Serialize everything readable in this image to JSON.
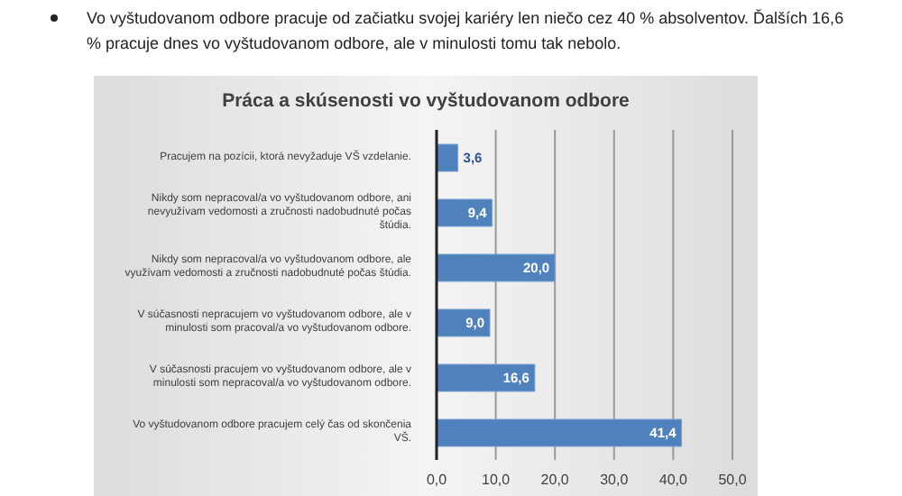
{
  "chart_data": {
    "type": "bar",
    "orientation": "horizontal",
    "title": "Práca a skúsenosti vo vyštudovanom odbore",
    "annotations": [
      "Vo vyštudovanom odbore pracuje od začiatku svojej kariéry len niečo cez 40 % absolventov. Ďalších 16,6 % pracuje dnes vo vyštudovanom odbore, ale v minulosti tomu tak nebolo."
    ],
    "categories": [
      "Pracujem na pozícii, ktorá nevyžaduje VŠ vzdelanie.",
      "Nikdy som nepracoval/a vo vyštudovanom  odbore, ani nevyužívam vedomosti a zručnosti nadobudnuté počas štúdia.",
      "Nikdy som nepracoval/a vo vyštudovanom odbore, ale využívam vedomosti a zručnosti nadobudnuté počas štúdia.",
      "V súčasnosti nepracujem vo vyštudovanom odbore, ale v minulosti som pracoval/a vo vyštudovanom  odbore.",
      "V súčasnosti pracujem vo vyštudovanom odbore, ale v minulosti som nepracoval/a vo vyštudovanom  odbore.",
      "Vo vyštudovanom  odbore pracujem celý čas od skončenia VŠ."
    ],
    "values": [
      3.6,
      9.4,
      20.0,
      9.0,
      16.6,
      41.4
    ],
    "value_labels": [
      "3,6",
      "9,4",
      "20,0",
      "9,0",
      "16,6",
      "41,4"
    ],
    "color": "#4f81bd",
    "xlim": [
      0,
      50
    ],
    "xticks": [
      {
        "value": 0,
        "label": "0,0"
      },
      {
        "value": 10,
        "label": "10,0"
      },
      {
        "value": 20,
        "label": "20,0"
      },
      {
        "value": 30,
        "label": "30,0"
      },
      {
        "value": 40,
        "label": "40,0"
      },
      {
        "value": 50,
        "label": "50,0"
      }
    ],
    "grid": "x",
    "legend": false
  }
}
